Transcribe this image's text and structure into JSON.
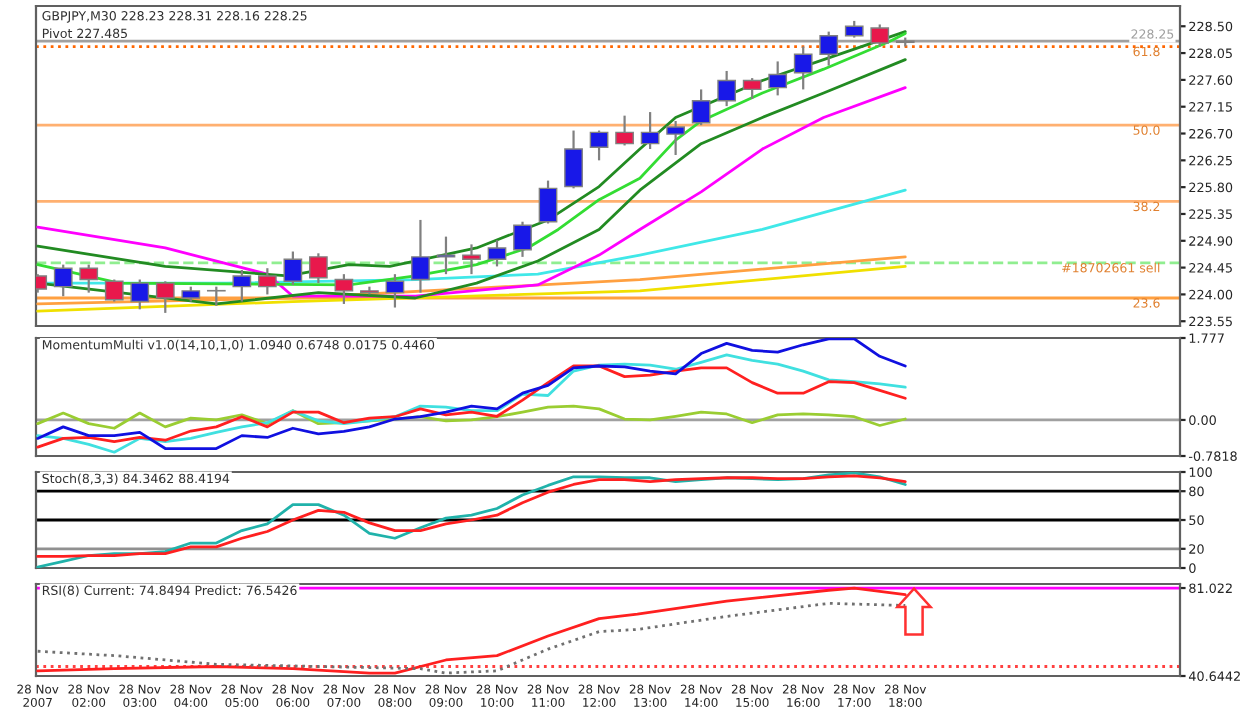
{
  "chart_data": [
    {
      "type": "candlestick",
      "title": "GBPJPY,M30 228.23 228.31 228.16 228.25",
      "annotations": [
        "Pivot 227.485",
        {
          "text": "61.8",
          "x": "2007-11-28T23:00",
          "y": 228.16
        },
        {
          "text": "50.0",
          "x": "2007-11-28T23:00",
          "y": 226.84
        },
        {
          "text": "38.2",
          "x": "2007-11-28T23:00",
          "y": 225.56
        },
        {
          "text": "23.6",
          "x": "2007-11-28T23:00",
          "y": 223.94
        },
        {
          "text": "#18702661 sell",
          "x": "2007-11-28T23:00",
          "y": 224.53
        }
      ],
      "x": [
        "2007-11-28T01:00",
        "2007-11-28T01:30",
        "2007-11-28T02:00",
        "2007-11-28T02:30",
        "2007-11-28T03:00",
        "2007-11-28T03:30",
        "2007-11-28T04:00",
        "2007-11-28T04:30",
        "2007-11-28T05:00",
        "2007-11-28T05:30",
        "2007-11-28T06:00",
        "2007-11-28T06:30",
        "2007-11-28T07:00",
        "2007-11-28T07:30",
        "2007-11-28T08:00",
        "2007-11-28T08:30",
        "2007-11-28T09:00",
        "2007-11-28T09:30",
        "2007-11-28T10:00",
        "2007-11-28T10:30",
        "2007-11-28T11:00",
        "2007-11-28T11:30",
        "2007-11-28T12:00",
        "2007-11-28T12:30",
        "2007-11-28T13:00",
        "2007-11-28T13:30",
        "2007-11-28T14:00",
        "2007-11-28T14:30",
        "2007-11-28T15:00",
        "2007-11-28T15:30",
        "2007-11-28T16:00",
        "2007-11-28T16:30",
        "2007-11-28T17:00",
        "2007-11-28T17:30",
        "2007-11-28T18:00"
      ],
      "ohlc": [
        [
          224.31,
          224.34,
          224.03,
          224.09
        ],
        [
          224.13,
          224.5,
          223.97,
          224.44
        ],
        [
          224.44,
          224.5,
          224.03,
          224.25
        ],
        [
          224.22,
          224.25,
          223.88,
          223.91
        ],
        [
          223.88,
          224.25,
          223.75,
          224.19
        ],
        [
          224.19,
          224.22,
          223.69,
          223.94
        ],
        [
          223.94,
          224.13,
          223.88,
          224.06
        ],
        [
          224.06,
          224.13,
          223.81,
          224.06
        ],
        [
          224.13,
          224.41,
          223.88,
          224.31
        ],
        [
          224.31,
          224.44,
          224.0,
          224.13
        ],
        [
          224.22,
          224.72,
          224.16,
          224.59
        ],
        [
          224.63,
          224.69,
          224.19,
          224.28
        ],
        [
          224.25,
          224.34,
          223.84,
          224.06
        ],
        [
          224.06,
          224.13,
          224.0,
          224.03
        ],
        [
          224.03,
          224.34,
          223.78,
          224.22
        ],
        [
          224.25,
          225.25,
          224.03,
          224.63
        ],
        [
          224.63,
          224.97,
          224.34,
          224.66
        ],
        [
          224.66,
          224.84,
          224.34,
          224.59
        ],
        [
          224.59,
          224.91,
          224.47,
          224.78
        ],
        [
          224.75,
          225.22,
          224.63,
          225.16
        ],
        [
          225.22,
          225.91,
          225.19,
          225.78
        ],
        [
          225.81,
          226.75,
          225.78,
          226.44
        ],
        [
          226.47,
          226.75,
          226.25,
          226.72
        ],
        [
          226.72,
          227.0,
          226.5,
          226.53
        ],
        [
          226.53,
          227.06,
          226.44,
          226.72
        ],
        [
          226.69,
          226.91,
          226.34,
          226.81
        ],
        [
          226.88,
          227.44,
          226.84,
          227.25
        ],
        [
          227.25,
          227.75,
          227.16,
          227.59
        ],
        [
          227.59,
          227.63,
          227.28,
          227.44
        ],
        [
          227.47,
          227.91,
          227.34,
          227.69
        ],
        [
          227.72,
          228.16,
          227.44,
          228.03
        ],
        [
          228.03,
          228.41,
          227.84,
          228.34
        ],
        [
          228.34,
          228.59,
          228.31,
          228.5
        ],
        [
          228.47,
          228.53,
          228.16,
          228.22
        ],
        [
          228.23,
          228.31,
          228.16,
          228.25
        ]
      ],
      "colors": [
        "#e8184c",
        "#1818e8",
        "#e8184c",
        "#e8184c",
        "#1818e8",
        "#e8184c",
        "#1818e8",
        "#1818e8",
        "#1818e8",
        "#e8184c",
        "#1818e8",
        "#e8184c",
        "#e8184c",
        "#e8184c",
        "#1818e8",
        "#1818e8",
        "#1818e8",
        "#e8184c",
        "#1818e8",
        "#1818e8",
        "#1818e8",
        "#1818e8",
        "#1818e8",
        "#e8184c",
        "#1818e8",
        "#1818e8",
        "#1818e8",
        "#1818e8",
        "#e8184c",
        "#1818e8",
        "#1818e8",
        "#1818e8",
        "#1818e8",
        "#e8184c",
        "#1818e8"
      ],
      "series": [
        {
          "type": "line",
          "color": "#f0e000",
          "x": [
            "2007-11-28T01:00",
            "2007-11-28T06:00",
            "2007-11-28T12:48",
            "2007-11-28T18:00"
          ],
          "values": [
            223.72,
            223.88,
            224.06,
            224.47
          ]
        },
        {
          "type": "line",
          "color": "#ffa040",
          "x": [
            "2007-11-28T01:00",
            "2007-11-28T06:00",
            "2007-11-28T12:48",
            "2007-11-28T18:00"
          ],
          "values": [
            223.84,
            223.94,
            224.25,
            224.63
          ]
        },
        {
          "type": "line",
          "color": "#40e8e8",
          "x": [
            "2007-11-28T01:00",
            "2007-11-28T04:42",
            "2007-11-28T08:24",
            "2007-11-28T10:48",
            "2007-11-28T12:48",
            "2007-11-28T15:12",
            "2007-11-28T18:00"
          ],
          "values": [
            224.19,
            224.19,
            224.25,
            224.34,
            224.66,
            225.09,
            225.75
          ]
        },
        {
          "type": "line",
          "color": "#ff00ff",
          "x": [
            "2007-11-28T01:00",
            "2007-11-28T03:30",
            "2007-11-28T05:30",
            "2007-11-28T06:00",
            "2007-11-28T08:24",
            "2007-11-28T10:48",
            "2007-11-28T12:00",
            "2007-11-28T12:48",
            "2007-11-28T14:00",
            "2007-11-28T15:12",
            "2007-11-28T16:24",
            "2007-11-28T18:00"
          ],
          "values": [
            225.13,
            224.78,
            224.34,
            223.97,
            223.97,
            224.16,
            224.66,
            225.09,
            225.72,
            226.44,
            226.97,
            227.47
          ]
        },
        {
          "type": "line",
          "color": "#228b22",
          "x": [
            "2007-11-28T01:00",
            "2007-11-28T02:36",
            "2007-11-28T04:30",
            "2007-11-28T06:30",
            "2007-11-28T08:24",
            "2007-11-28T09:36",
            "2007-11-28T10:48",
            "2007-11-28T12:00",
            "2007-11-28T12:48",
            "2007-11-28T14:00",
            "2007-11-28T15:12",
            "2007-11-28T16:24",
            "2007-11-28T18:00"
          ],
          "values": [
            224.19,
            224.03,
            223.84,
            224.03,
            223.94,
            224.19,
            224.56,
            225.09,
            225.75,
            226.53,
            226.97,
            227.38,
            227.94
          ]
        },
        {
          "type": "line",
          "color": "#228b22",
          "x": [
            "2007-11-28T01:00",
            "2007-11-28T03:30",
            "2007-11-28T05:54",
            "2007-11-28T07:06",
            "2007-11-28T07:54",
            "2007-11-28T09:36",
            "2007-11-28T11:00",
            "2007-11-28T12:00",
            "2007-11-28T12:48",
            "2007-11-28T13:30",
            "2007-11-28T15:12",
            "2007-11-28T16:24",
            "2007-11-28T18:00"
          ],
          "values": [
            224.81,
            224.47,
            224.31,
            224.5,
            224.47,
            224.78,
            225.25,
            225.81,
            226.44,
            226.97,
            227.59,
            227.94,
            228.41
          ]
        },
        {
          "type": "line",
          "color": "#33dd33",
          "x": [
            "2007-11-28T01:00",
            "2007-11-28T02:36",
            "2007-11-28T07:06",
            "2007-11-28T08:24",
            "2007-11-28T09:36",
            "2007-11-28T10:36",
            "2007-11-28T11:12",
            "2007-11-28T12:00",
            "2007-11-28T12:48",
            "2007-11-28T13:30",
            "2007-11-28T14:00",
            "2007-11-28T15:12",
            "2007-11-28T16:24",
            "2007-11-28T17:42",
            "2007-11-28T18:00"
          ],
          "values": [
            224.5,
            224.19,
            224.16,
            224.31,
            224.5,
            224.78,
            225.09,
            225.59,
            225.95,
            226.59,
            226.91,
            227.38,
            227.78,
            228.25,
            228.38
          ]
        }
      ],
      "xlim": [
        "2007-11-28T00:58",
        "2007-11-28T23:23"
      ],
      "ylim": [
        223.47,
        228.84
      ],
      "yticks": [
        {
          "value": 228.5,
          "label": "228.50"
        },
        {
          "value": 228.05,
          "label": "228.05"
        },
        {
          "value": 227.6,
          "label": "227.60"
        },
        {
          "value": 227.15,
          "label": "227.15"
        },
        {
          "value": 226.7,
          "label": "226.70"
        },
        {
          "value": 226.25,
          "label": "226.25"
        },
        {
          "value": 225.8,
          "label": "225.80"
        },
        {
          "value": 225.35,
          "label": "225.35"
        },
        {
          "value": 224.9,
          "label": "224.90"
        },
        {
          "value": 224.45,
          "label": "224.45"
        },
        {
          "value": 224.0,
          "label": "224.00"
        },
        {
          "value": 223.55,
          "label": "223.55"
        }
      ],
      "ref_lines": [
        {
          "axis": "y",
          "value": 228.25,
          "label": "228.25",
          "color": "#a0a0a0",
          "line_style": "solid"
        },
        {
          "axis": "y",
          "value": 228.16,
          "color": "#ff6600",
          "line_style": "dotted"
        },
        {
          "axis": "y",
          "value": 226.84,
          "color": "#ffb070",
          "line_style": "solid"
        },
        {
          "axis": "y",
          "value": 225.56,
          "color": "#ffb070",
          "line_style": "solid"
        },
        {
          "axis": "y",
          "value": 223.94,
          "color": "#ffa040",
          "line_style": "solid"
        },
        {
          "axis": "y",
          "value": 224.53,
          "color": "#90ee90",
          "line_style": "dashed"
        }
      ],
      "tick_labels": "y",
      "grid": false
    },
    {
      "type": "line",
      "title": "MomentumMulti v1.0(14,10,1,0) 1.0940 0.6748 0.0175 0.4460",
      "x": [
        "2007-11-28T01:00",
        "2007-11-28T01:30",
        "2007-11-28T02:00",
        "2007-11-28T02:30",
        "2007-11-28T03:00",
        "2007-11-28T03:30",
        "2007-11-28T04:00",
        "2007-11-28T04:30",
        "2007-11-28T05:00",
        "2007-11-28T05:30",
        "2007-11-28T06:00",
        "2007-11-28T06:30",
        "2007-11-28T07:00",
        "2007-11-28T07:30",
        "2007-11-28T08:00",
        "2007-11-28T08:30",
        "2007-11-28T09:00",
        "2007-11-28T09:30",
        "2007-11-28T10:00",
        "2007-11-28T10:30",
        "2007-11-28T11:00",
        "2007-11-28T11:30",
        "2007-11-28T12:00",
        "2007-11-28T12:30",
        "2007-11-28T13:00",
        "2007-11-28T13:30",
        "2007-11-28T14:00",
        "2007-11-28T14:30",
        "2007-11-28T15:00",
        "2007-11-28T15:30",
        "2007-11-28T16:00",
        "2007-11-28T16:30",
        "2007-11-28T17:00",
        "2007-11-28T17:30",
        "2007-11-28T18:00"
      ],
      "series": [
        {
          "color": "#9acd32",
          "values": [
            -0.08,
            0.15,
            -0.08,
            -0.18,
            0.15,
            -0.15,
            0.04,
            0.0,
            0.11,
            -0.08,
            0.2,
            -0.08,
            -0.06,
            -0.02,
            0.02,
            0.07,
            -0.02,
            0.0,
            0.07,
            0.17,
            0.28,
            0.3,
            0.24,
            0.02,
            0.0,
            0.08,
            0.17,
            0.13,
            -0.06,
            0.11,
            0.13,
            0.11,
            0.07,
            -0.12,
            0.02
          ]
        },
        {
          "color": "#40e0e0",
          "values": [
            -0.34,
            -0.4,
            -0.53,
            -0.7,
            -0.4,
            -0.47,
            -0.4,
            -0.27,
            -0.15,
            -0.06,
            0.2,
            -0.02,
            -0.08,
            -0.02,
            0.07,
            0.3,
            0.28,
            0.2,
            0.2,
            0.56,
            0.53,
            1.06,
            1.19,
            1.21,
            1.19,
            1.1,
            1.25,
            1.41,
            1.29,
            1.21,
            1.06,
            0.87,
            0.83,
            0.78,
            0.71
          ]
        },
        {
          "color": "#ff2020",
          "values": [
            -0.59,
            -0.4,
            -0.38,
            -0.47,
            -0.38,
            -0.44,
            -0.24,
            -0.15,
            0.07,
            -0.15,
            0.17,
            0.17,
            -0.06,
            0.04,
            0.07,
            0.24,
            0.11,
            0.17,
            0.08,
            0.43,
            0.81,
            1.17,
            1.17,
            0.94,
            0.97,
            1.06,
            1.13,
            1.13,
            0.81,
            0.58,
            0.58,
            0.83,
            0.81,
            0.64,
            0.47
          ]
        },
        {
          "color": "#1010e0",
          "values": [
            -0.4,
            -0.15,
            -0.34,
            -0.34,
            -0.27,
            -0.62,
            -0.62,
            -0.62,
            -0.34,
            -0.38,
            -0.18,
            -0.3,
            -0.25,
            -0.15,
            0.02,
            0.07,
            0.17,
            0.3,
            0.24,
            0.58,
            0.75,
            1.13,
            1.17,
            1.15,
            1.06,
            1.0,
            1.44,
            1.66,
            1.51,
            1.47,
            1.63,
            1.76,
            1.76,
            1.38,
            1.17
          ]
        }
      ],
      "xlim": [
        "2007-11-28T00:58",
        "2007-11-28T23:23"
      ],
      "ylim": [
        -0.7818,
        1.777
      ],
      "yticks": [
        {
          "value": 1.777,
          "label": "1.777"
        },
        {
          "value": 0,
          "label": "0.00"
        },
        {
          "value": -0.7818,
          "label": "-0.7818"
        }
      ],
      "ref_lines": [
        {
          "axis": "y",
          "value": 0,
          "color": "#a0a0a0",
          "line_style": "solid"
        }
      ],
      "tick_labels": "y",
      "grid": false
    },
    {
      "type": "line",
      "title": "Stoch(8,3,3) 84.3462 88.4194",
      "x": [
        "2007-11-28T01:00",
        "2007-11-28T01:30",
        "2007-11-28T02:00",
        "2007-11-28T02:30",
        "2007-11-28T03:00",
        "2007-11-28T03:30",
        "2007-11-28T04:00",
        "2007-11-28T04:30",
        "2007-11-28T05:00",
        "2007-11-28T05:30",
        "2007-11-28T06:00",
        "2007-11-28T06:30",
        "2007-11-28T07:00",
        "2007-11-28T07:30",
        "2007-11-28T08:00",
        "2007-11-28T08:30",
        "2007-11-28T09:00",
        "2007-11-28T09:30",
        "2007-11-28T10:00",
        "2007-11-28T10:30",
        "2007-11-28T11:00",
        "2007-11-28T11:30",
        "2007-11-28T12:00",
        "2007-11-28T12:30",
        "2007-11-28T13:00",
        "2007-11-28T13:30",
        "2007-11-28T14:00",
        "2007-11-28T14:30",
        "2007-11-28T15:00",
        "2007-11-28T15:30",
        "2007-11-28T16:00",
        "2007-11-28T16:30",
        "2007-11-28T17:00",
        "2007-11-28T17:30",
        "2007-11-28T18:00"
      ],
      "series": [
        {
          "color": "#20b2aa",
          "values": [
            1,
            7,
            13,
            15,
            15,
            17,
            26,
            26,
            39,
            46,
            66,
            66,
            55,
            36,
            31,
            42,
            52,
            55,
            62,
            76,
            86,
            95,
            95,
            94,
            94,
            90,
            92,
            94,
            93,
            92,
            93,
            97,
            99,
            95,
            87
          ]
        },
        {
          "color": "#ff2020",
          "values": [
            12,
            12,
            13,
            13,
            15,
            15,
            22,
            22,
            31,
            38,
            50,
            60,
            58,
            47,
            39,
            39,
            46,
            50,
            55,
            68,
            79,
            87,
            92,
            92,
            90,
            92,
            93,
            94,
            94,
            93,
            93,
            95,
            96,
            94,
            90
          ]
        }
      ],
      "xlim": [
        "2007-11-28T00:58",
        "2007-11-28T23:23"
      ],
      "ylim": [
        0,
        100
      ],
      "yticks": [
        0,
        20,
        50,
        80,
        100
      ],
      "ref_lines": [
        {
          "axis": "y",
          "value": 80,
          "color": "#000000",
          "line_style": "solid"
        },
        {
          "axis": "y",
          "value": 50,
          "color": "#000000",
          "line_style": "solid"
        },
        {
          "axis": "y",
          "value": 20,
          "color": "#909090",
          "line_style": "solid"
        }
      ],
      "tick_labels": "y",
      "grid": false
    },
    {
      "type": "line",
      "title": "RSI(8) Current: 74.8494 Predict: 76.5426",
      "series": [
        {
          "color": "#ff2020",
          "line_style": "solid",
          "x": [
            "2007-11-28T01:00",
            "2007-11-28T02:30",
            "2007-11-28T04:30",
            "2007-11-28T06:00",
            "2007-11-28T07:30",
            "2007-11-28T08:00",
            "2007-11-28T09:00",
            "2007-11-28T10:00",
            "2007-11-28T11:00",
            "2007-11-28T12:00",
            "2007-11-28T12:45",
            "2007-11-28T14:30",
            "2007-11-28T16:30",
            "2007-11-28T17:00",
            "2007-11-28T18:00"
          ],
          "values": [
            43,
            44,
            45,
            44,
            42,
            42,
            48,
            50,
            59,
            67,
            69,
            75,
            80,
            81,
            78
          ]
        },
        {
          "color": "#707070",
          "line_style": "dotted",
          "x": [
            "2007-11-28T01:00",
            "2007-11-28T02:30",
            "2007-11-28T04:30",
            "2007-11-28T06:30",
            "2007-11-28T08:30",
            "2007-11-28T09:00",
            "2007-11-28T10:00",
            "2007-11-28T11:00",
            "2007-11-28T12:00",
            "2007-11-28T12:45",
            "2007-11-28T14:30",
            "2007-11-28T16:30",
            "2007-11-28T18:00"
          ],
          "values": [
            52,
            50,
            46,
            45,
            44,
            42,
            43,
            53,
            61,
            62,
            68,
            74,
            73
          ]
        }
      ],
      "xlim": [
        "2007-11-28T00:58",
        "2007-11-28T23:23"
      ],
      "ylim": [
        40.6442,
        82.87
      ],
      "xticks": [
        {
          "value": "2007-11-28T01:00",
          "label": "28 Nov 2007"
        },
        {
          "value": "2007-11-28T02:00",
          "label": "28 Nov 02:00"
        },
        {
          "value": "2007-11-28T03:00",
          "label": "28 Nov 03:00"
        },
        {
          "value": "2007-11-28T04:00",
          "label": "28 Nov 04:00"
        },
        {
          "value": "2007-11-28T05:00",
          "label": "28 Nov 05:00"
        },
        {
          "value": "2007-11-28T06:00",
          "label": "28 Nov 06:00"
        },
        {
          "value": "2007-11-28T07:00",
          "label": "28 Nov 07:00"
        },
        {
          "value": "2007-11-28T08:00",
          "label": "28 Nov 08:00"
        },
        {
          "value": "2007-11-28T09:00",
          "label": "28 Nov 09:00"
        },
        {
          "value": "2007-11-28T10:00",
          "label": "28 Nov 10:00"
        },
        {
          "value": "2007-11-28T11:00",
          "label": "28 Nov 11:00"
        },
        {
          "value": "2007-11-28T12:00",
          "label": "28 Nov 12:00"
        },
        {
          "value": "2007-11-28T13:00",
          "label": "28 Nov 13:00"
        },
        {
          "value": "2007-11-28T14:00",
          "label": "28 Nov 14:00"
        },
        {
          "value": "2007-11-28T15:00",
          "label": "28 Nov 15:00"
        },
        {
          "value": "2007-11-28T16:00",
          "label": "28 Nov 16:00"
        },
        {
          "value": "2007-11-28T17:00",
          "label": "28 Nov 17:00"
        },
        {
          "value": "2007-11-28T18:00",
          "label": "28 Nov 18:00"
        }
      ],
      "yticks": [
        {
          "value": 81.022,
          "label": "81.022"
        },
        {
          "value": 40.6442,
          "label": "40.6442"
        }
      ],
      "ref_lines": [
        {
          "axis": "y",
          "value": 81.022,
          "color": "#ff00ff",
          "line_style": "solid"
        },
        {
          "axis": "y",
          "value": 45,
          "color": "#ff4040",
          "line_style": "dotted"
        }
      ],
      "grid": false
    }
  ]
}
